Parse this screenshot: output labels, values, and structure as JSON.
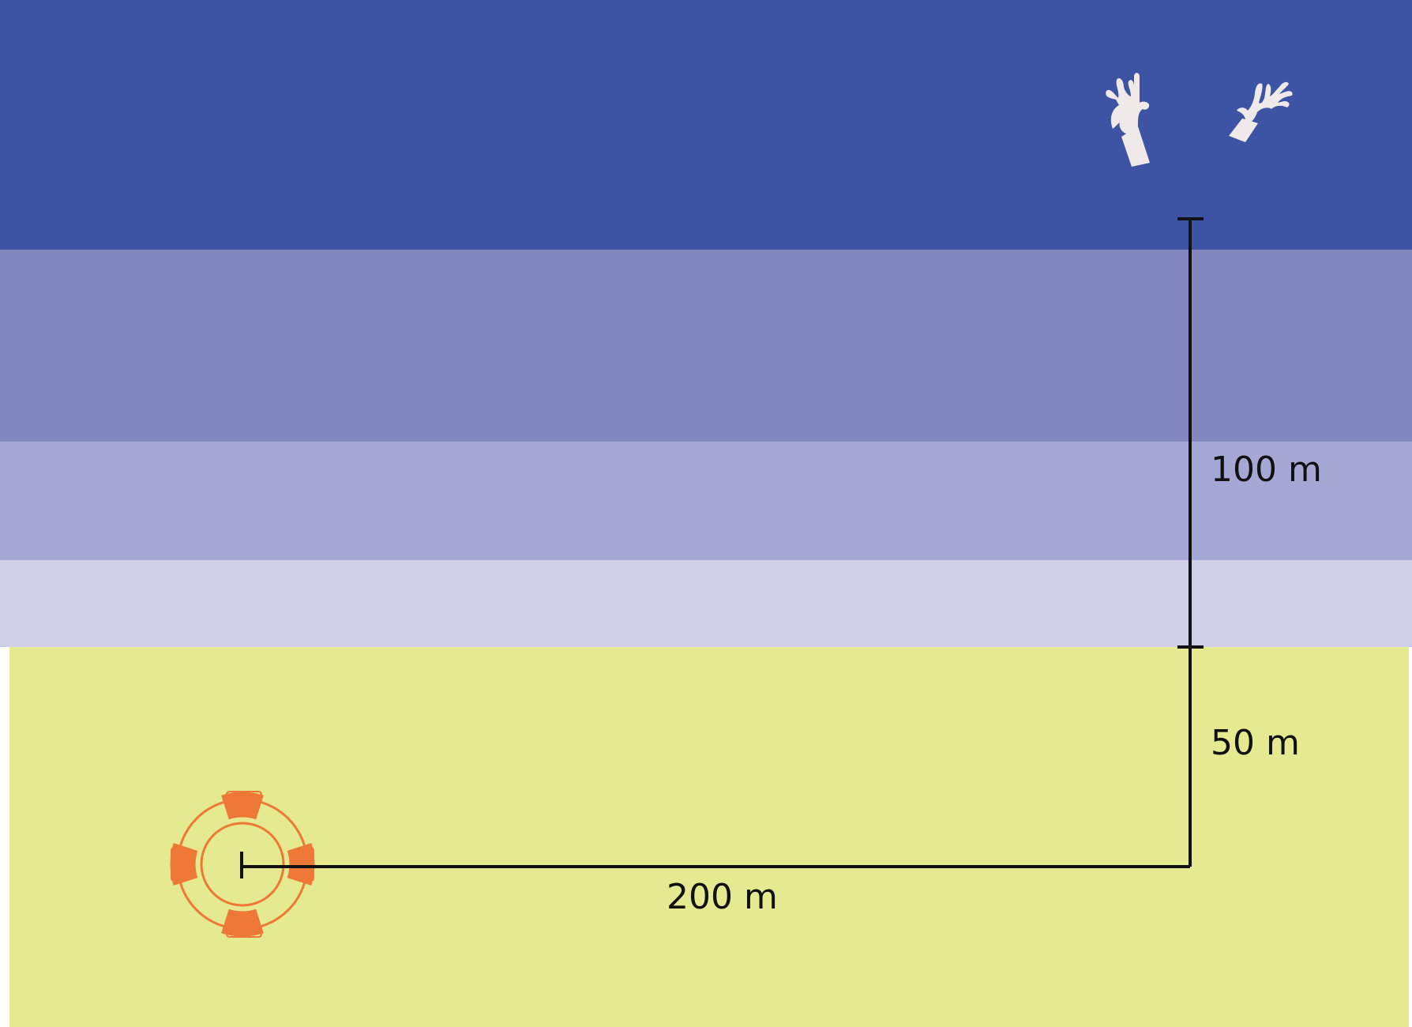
{
  "diagram": {
    "distances": {
      "water": "100 m",
      "beach": "50 m",
      "along_shore": "200 m"
    },
    "icons": {
      "swimmer": "raised-hands-icon",
      "rescuer": "lifebuoy-icon"
    },
    "colors": {
      "deep_water": "#3d54a4",
      "water_band_2": "#8287bf",
      "water_band_3": "#a5a8d5",
      "shallow_water": "#cfd0e8",
      "sand": "#e5e98f",
      "lifebuoy": "#ee7936",
      "hands": "#f0e9ea",
      "lines": "#111111"
    }
  }
}
